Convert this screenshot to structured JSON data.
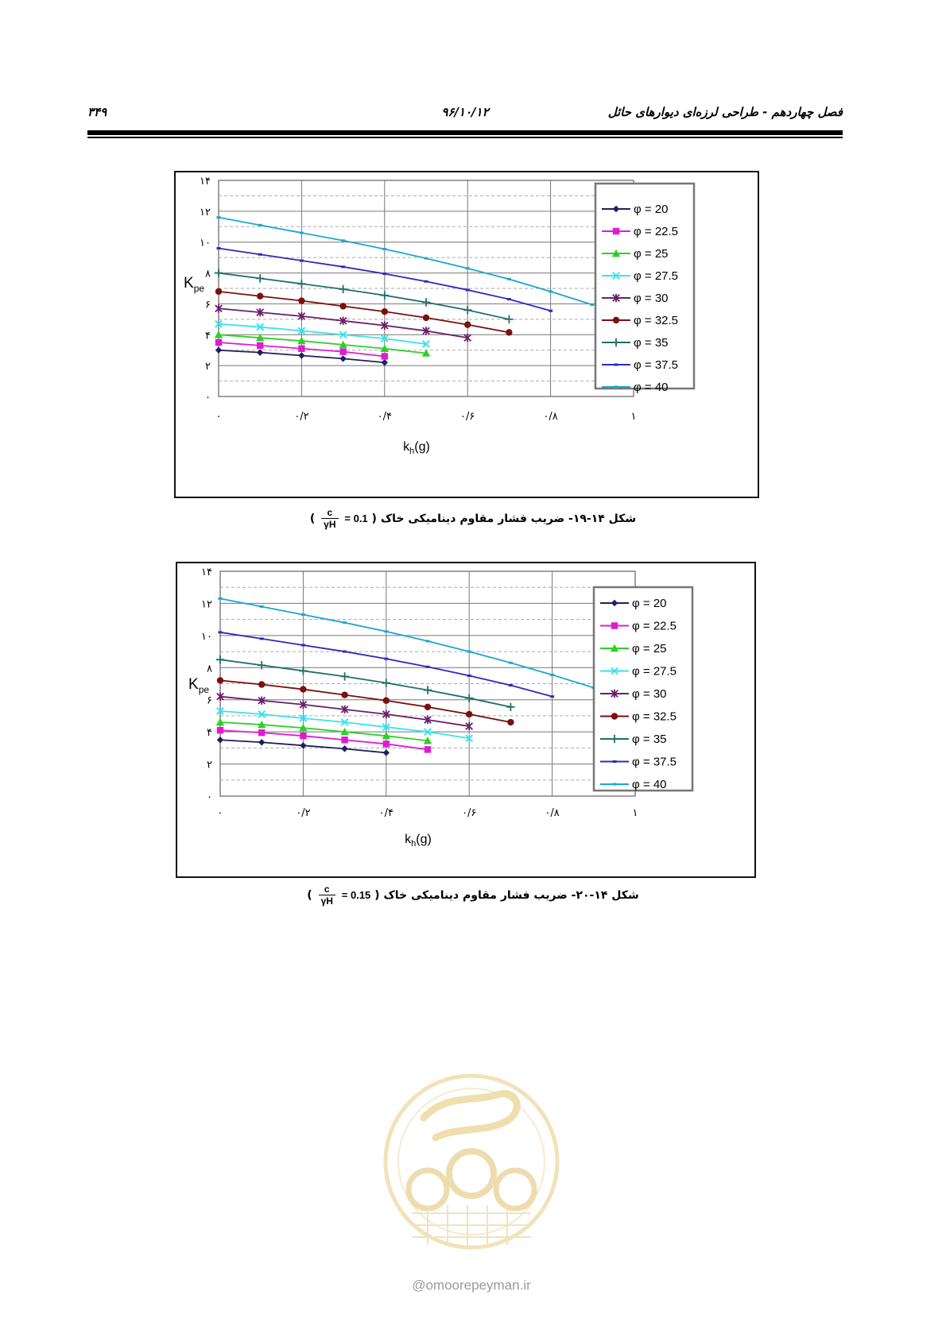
{
  "header": {
    "chapter": "فصل چهاردهم - طراحی لرزه‌ای دیوارهای حائل",
    "date": "۹۶/۱۰/۱۲",
    "page_number": "۳۴۹"
  },
  "captions": [
    {
      "text": "شکل ۱۴-۱۹- ضریب فشار مقاوم دینامیکی خاک",
      "frac_num": "c",
      "frac_den": "γH",
      "value": "= 0.1"
    },
    {
      "text": "شکل ۱۴-۲۰- ضریب فشار مقاوم دینامیکی خاک",
      "frac_num": "c",
      "frac_den": "γH",
      "value": "= 0.15"
    }
  ],
  "watermark": {
    "text": "@omoorepeyman.ir"
  },
  "colors": {
    "φ = 20": "#1f1f5e",
    "φ = 22.5": "#e21ad2",
    "φ = 25": "#2ecf28",
    "φ = 27.5": "#39e3ee",
    "φ = 30": "#6b1f6b",
    "φ = 32.5": "#7a1010",
    "φ = 35": "#1f7068",
    "φ = 37.5": "#2b2bbf",
    "φ = 40": "#1aa7cf"
  },
  "chart_data": [
    {
      "type": "line",
      "xlabel": "kh(g)",
      "ylabel": "Kpe",
      "xlim": [
        0,
        1
      ],
      "ylim": [
        0,
        14
      ],
      "x_ticks": [
        "۰",
        "۰/۲",
        "۰/۴",
        "۰/۶",
        "۰/۸",
        "۱"
      ],
      "y_ticks": [
        "۰",
        "۲",
        "۴",
        "۶",
        "۸",
        "۱۰",
        "۱۲",
        "۱۴"
      ],
      "grid": true,
      "legend_position": "right",
      "series": [
        {
          "name": "φ = 20",
          "marker": "diamond",
          "x": [
            0,
            0.1,
            0.2,
            0.3,
            0.4
          ],
          "y": [
            3.0,
            2.85,
            2.65,
            2.45,
            2.2
          ]
        },
        {
          "name": "φ = 22.5",
          "marker": "square",
          "x": [
            0,
            0.1,
            0.2,
            0.3,
            0.4
          ],
          "y": [
            3.5,
            3.3,
            3.1,
            2.9,
            2.6
          ]
        },
        {
          "name": "φ = 25",
          "marker": "triangle",
          "x": [
            0,
            0.1,
            0.2,
            0.3,
            0.4,
            0.5
          ],
          "y": [
            4.0,
            3.8,
            3.6,
            3.35,
            3.1,
            2.8
          ]
        },
        {
          "name": "φ = 27.5",
          "marker": "x",
          "x": [
            0,
            0.1,
            0.2,
            0.3,
            0.4,
            0.5
          ],
          "y": [
            4.7,
            4.5,
            4.25,
            4.0,
            3.75,
            3.4
          ]
        },
        {
          "name": "φ = 30",
          "marker": "star",
          "x": [
            0,
            0.1,
            0.2,
            0.3,
            0.4,
            0.5,
            0.6
          ],
          "y": [
            5.7,
            5.45,
            5.2,
            4.9,
            4.6,
            4.25,
            3.8
          ]
        },
        {
          "name": "φ = 32.5",
          "marker": "circle",
          "x": [
            0,
            0.1,
            0.2,
            0.3,
            0.4,
            0.5,
            0.6,
            0.7
          ],
          "y": [
            6.8,
            6.5,
            6.2,
            5.85,
            5.5,
            5.1,
            4.65,
            4.15
          ]
        },
        {
          "name": "φ = 35",
          "marker": "plus",
          "x": [
            0,
            0.1,
            0.2,
            0.3,
            0.4,
            0.5,
            0.6,
            0.7
          ],
          "y": [
            8.0,
            7.65,
            7.3,
            6.95,
            6.55,
            6.1,
            5.6,
            5.0
          ]
        },
        {
          "name": "φ = 37.5",
          "marker": "dash",
          "x": [
            0,
            0.1,
            0.2,
            0.3,
            0.4,
            0.5,
            0.6,
            0.7,
            0.8
          ],
          "y": [
            9.6,
            9.2,
            8.8,
            8.4,
            7.95,
            7.45,
            6.9,
            6.3,
            5.55
          ]
        },
        {
          "name": "φ = 40",
          "marker": "dash",
          "x": [
            0,
            0.1,
            0.2,
            0.3,
            0.4,
            0.5,
            0.6,
            0.7,
            0.8,
            0.9
          ],
          "y": [
            11.6,
            11.1,
            10.6,
            10.1,
            9.55,
            8.95,
            8.3,
            7.6,
            6.8,
            5.95
          ]
        }
      ]
    },
    {
      "type": "line",
      "xlabel": "kh(g)",
      "ylabel": "Kpe",
      "xlim": [
        0,
        1
      ],
      "ylim": [
        0,
        14
      ],
      "x_ticks": [
        "۰",
        "۰/۲",
        "۰/۴",
        "۰/۶",
        "۰/۸",
        "۱"
      ],
      "y_ticks": [
        "۰",
        "۲",
        "۴",
        "۶",
        "۸",
        "۱۰",
        "۱۲",
        "۱۴"
      ],
      "grid": true,
      "legend_position": "right",
      "series": [
        {
          "name": "φ = 20",
          "marker": "diamond",
          "x": [
            0,
            0.1,
            0.2,
            0.3,
            0.4
          ],
          "y": [
            3.5,
            3.35,
            3.15,
            2.95,
            2.7
          ]
        },
        {
          "name": "φ = 22.5",
          "marker": "square",
          "x": [
            0,
            0.1,
            0.2,
            0.3,
            0.4,
            0.5
          ],
          "y": [
            4.1,
            3.95,
            3.75,
            3.5,
            3.25,
            2.9
          ]
        },
        {
          "name": "φ = 25",
          "marker": "triangle",
          "x": [
            0,
            0.1,
            0.2,
            0.3,
            0.4,
            0.5
          ],
          "y": [
            4.6,
            4.45,
            4.25,
            4.0,
            3.75,
            3.45
          ]
        },
        {
          "name": "φ = 27.5",
          "marker": "x",
          "x": [
            0,
            0.1,
            0.2,
            0.3,
            0.4,
            0.5,
            0.6
          ],
          "y": [
            5.3,
            5.1,
            4.85,
            4.6,
            4.3,
            4.0,
            3.6
          ]
        },
        {
          "name": "φ = 30",
          "marker": "star",
          "x": [
            0,
            0.1,
            0.2,
            0.3,
            0.4,
            0.5,
            0.6
          ],
          "y": [
            6.2,
            5.95,
            5.7,
            5.4,
            5.1,
            4.75,
            4.35
          ]
        },
        {
          "name": "φ = 32.5",
          "marker": "circle",
          "x": [
            0,
            0.1,
            0.2,
            0.3,
            0.4,
            0.5,
            0.6,
            0.7
          ],
          "y": [
            7.2,
            6.95,
            6.65,
            6.3,
            5.95,
            5.55,
            5.1,
            4.6
          ]
        },
        {
          "name": "φ = 35",
          "marker": "plus",
          "x": [
            0,
            0.1,
            0.2,
            0.3,
            0.4,
            0.5,
            0.6,
            0.7
          ],
          "y": [
            8.5,
            8.15,
            7.8,
            7.45,
            7.05,
            6.6,
            6.1,
            5.55
          ]
        },
        {
          "name": "φ = 37.5",
          "marker": "dash",
          "x": [
            0,
            0.1,
            0.2,
            0.3,
            0.4,
            0.5,
            0.6,
            0.7,
            0.8
          ],
          "y": [
            10.2,
            9.8,
            9.4,
            9.0,
            8.55,
            8.05,
            7.5,
            6.9,
            6.2
          ]
        },
        {
          "name": "φ = 40",
          "marker": "dash",
          "x": [
            0,
            0.1,
            0.2,
            0.3,
            0.4,
            0.5,
            0.6,
            0.7,
            0.8,
            0.9
          ],
          "y": [
            12.3,
            11.8,
            11.3,
            10.8,
            10.25,
            9.65,
            9.0,
            8.3,
            7.55,
            6.75
          ]
        }
      ]
    }
  ]
}
